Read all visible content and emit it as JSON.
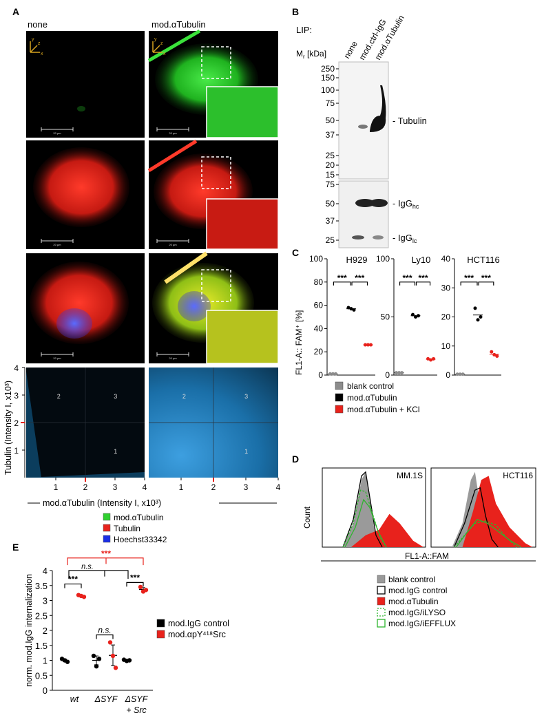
{
  "panelA": {
    "label": "A",
    "col_none": "none",
    "col_mod": "mod.αTubulin",
    "axis_y": "y",
    "axis_z": "z",
    "axis_x": "x",
    "scale_text": "20 µm",
    "scatter": {
      "ylabel": "Tubulin (Intensity I, x10³)",
      "xlabel": "mod.αTubulin (Intensity I, x10³)",
      "ticks": [
        "1",
        "2",
        "3",
        "4"
      ],
      "quadrants": [
        "1",
        "2",
        "3"
      ]
    },
    "legend": [
      {
        "name": "mod.αTubulin",
        "color": "#2fd12f"
      },
      {
        "name": "Tubulin",
        "color": "#e8221c"
      },
      {
        "name": "Hoechst33342",
        "color": "#1a2ee6"
      }
    ]
  },
  "panelB": {
    "label": "B",
    "lip": "LIP:",
    "lanes": [
      "none",
      "mod.ctrl-IgG",
      "mod.αTubulin"
    ],
    "mr": "M",
    "mr_sub": "r",
    "mr_unit": "[kDa]",
    "markers_top": [
      "250",
      "150",
      "100",
      "75",
      "50",
      "37",
      "25",
      "20",
      "15"
    ],
    "markers_bottom": [
      "75",
      "50",
      "37",
      "25"
    ],
    "band_tubulin": "- Tubulin",
    "band_hc": "- IgG",
    "band_hc_sub": "hc",
    "band_lc": "- IgG",
    "band_lc_sub": "lc"
  },
  "panelC": {
    "label": "C",
    "ylabel": "FL1-A:: FAM⁺ [%]",
    "sig": "***",
    "legend": [
      {
        "name": "blank control",
        "color": "#8c8c8c"
      },
      {
        "name": "mod.αTubulin",
        "color": "#000000"
      },
      {
        "name": "mod.αTubulin + KCl",
        "color": "#e8221c"
      }
    ]
  },
  "panelD": {
    "label": "D",
    "ylabel": "Count",
    "xlabel": "FL1-A::FAM",
    "legend": [
      {
        "name": "blank control",
        "style": "grey"
      },
      {
        "name": "mod.IgG control",
        "style": "black-outline"
      },
      {
        "name": "mod.αTubulin",
        "style": "red"
      },
      {
        "name": "mod.IgG/iLYSO",
        "style": "green-dashed"
      },
      {
        "name": "mod.IgG/iEFFLUX",
        "style": "green"
      }
    ]
  },
  "panelE": {
    "label": "E",
    "ns": "n.s.",
    "sig": "***"
  },
  "chart_data": [
    {
      "type": "scatter",
      "panel": "C",
      "subplots": [
        {
          "title": "H929",
          "ylim": [
            0,
            100
          ],
          "yticks": [
            0,
            20,
            40,
            60,
            80,
            100
          ],
          "series": [
            {
              "name": "blank control",
              "values": [
                1,
                1,
                1
              ]
            },
            {
              "name": "mod.αTubulin",
              "values": [
                58,
                57,
                56
              ]
            },
            {
              "name": "mod.αTubulin + KCl",
              "values": [
                26,
                26,
                26
              ]
            }
          ]
        },
        {
          "title": "Ly10",
          "ylim": [
            0,
            100
          ],
          "yticks": [
            0,
            50,
            100
          ],
          "series": [
            {
              "name": "blank control",
              "values": [
                2,
                2,
                2
              ]
            },
            {
              "name": "mod.αTubulin",
              "values": [
                52,
                50,
                51
              ]
            },
            {
              "name": "mod.αTubulin + KCl",
              "values": [
                14,
                13,
                14
              ]
            }
          ]
        },
        {
          "title": "HCT116",
          "ylim": [
            0,
            40
          ],
          "yticks": [
            0,
            10,
            20,
            30,
            40
          ],
          "series": [
            {
              "name": "blank control",
              "values": [
                0.3,
                0.3,
                0.3
              ]
            },
            {
              "name": "mod.αTubulin",
              "values": [
                23,
                19,
                20
              ]
            },
            {
              "name": "mod.αTubulin + KCl",
              "values": [
                8,
                7,
                6.5
              ]
            }
          ]
        }
      ]
    },
    {
      "type": "area",
      "panel": "D",
      "subplots": [
        {
          "title": "MM.1S"
        },
        {
          "title": "HCT116"
        }
      ]
    },
    {
      "type": "scatter",
      "panel": "E",
      "ylabel": "norm. mod.IgG internalization",
      "ylim": [
        0,
        4
      ],
      "yticks": [
        "0",
        "0.5",
        "1",
        "1.5",
        "2",
        "2.5",
        "3",
        "3.5",
        "4"
      ],
      "categories": [
        "wt",
        "ΔSYF",
        "ΔSYF\n+ Src"
      ],
      "series": [
        {
          "name": "mod.IgG control",
          "color": "#000000",
          "values": [
            [
              1.05,
              1.0,
              0.95
            ],
            [
              1.15,
              0.8,
              1.05
            ],
            [
              1.02,
              0.98,
              1.0
            ]
          ]
        },
        {
          "name": "mod.αpY⁴¹⁸Src",
          "color": "#e8221c",
          "values": [
            [
              3.18,
              3.15,
              3.12
            ],
            [
              1.6,
              1.15,
              0.75
            ],
            [
              3.45,
              3.3,
              3.35
            ]
          ]
        }
      ]
    }
  ]
}
